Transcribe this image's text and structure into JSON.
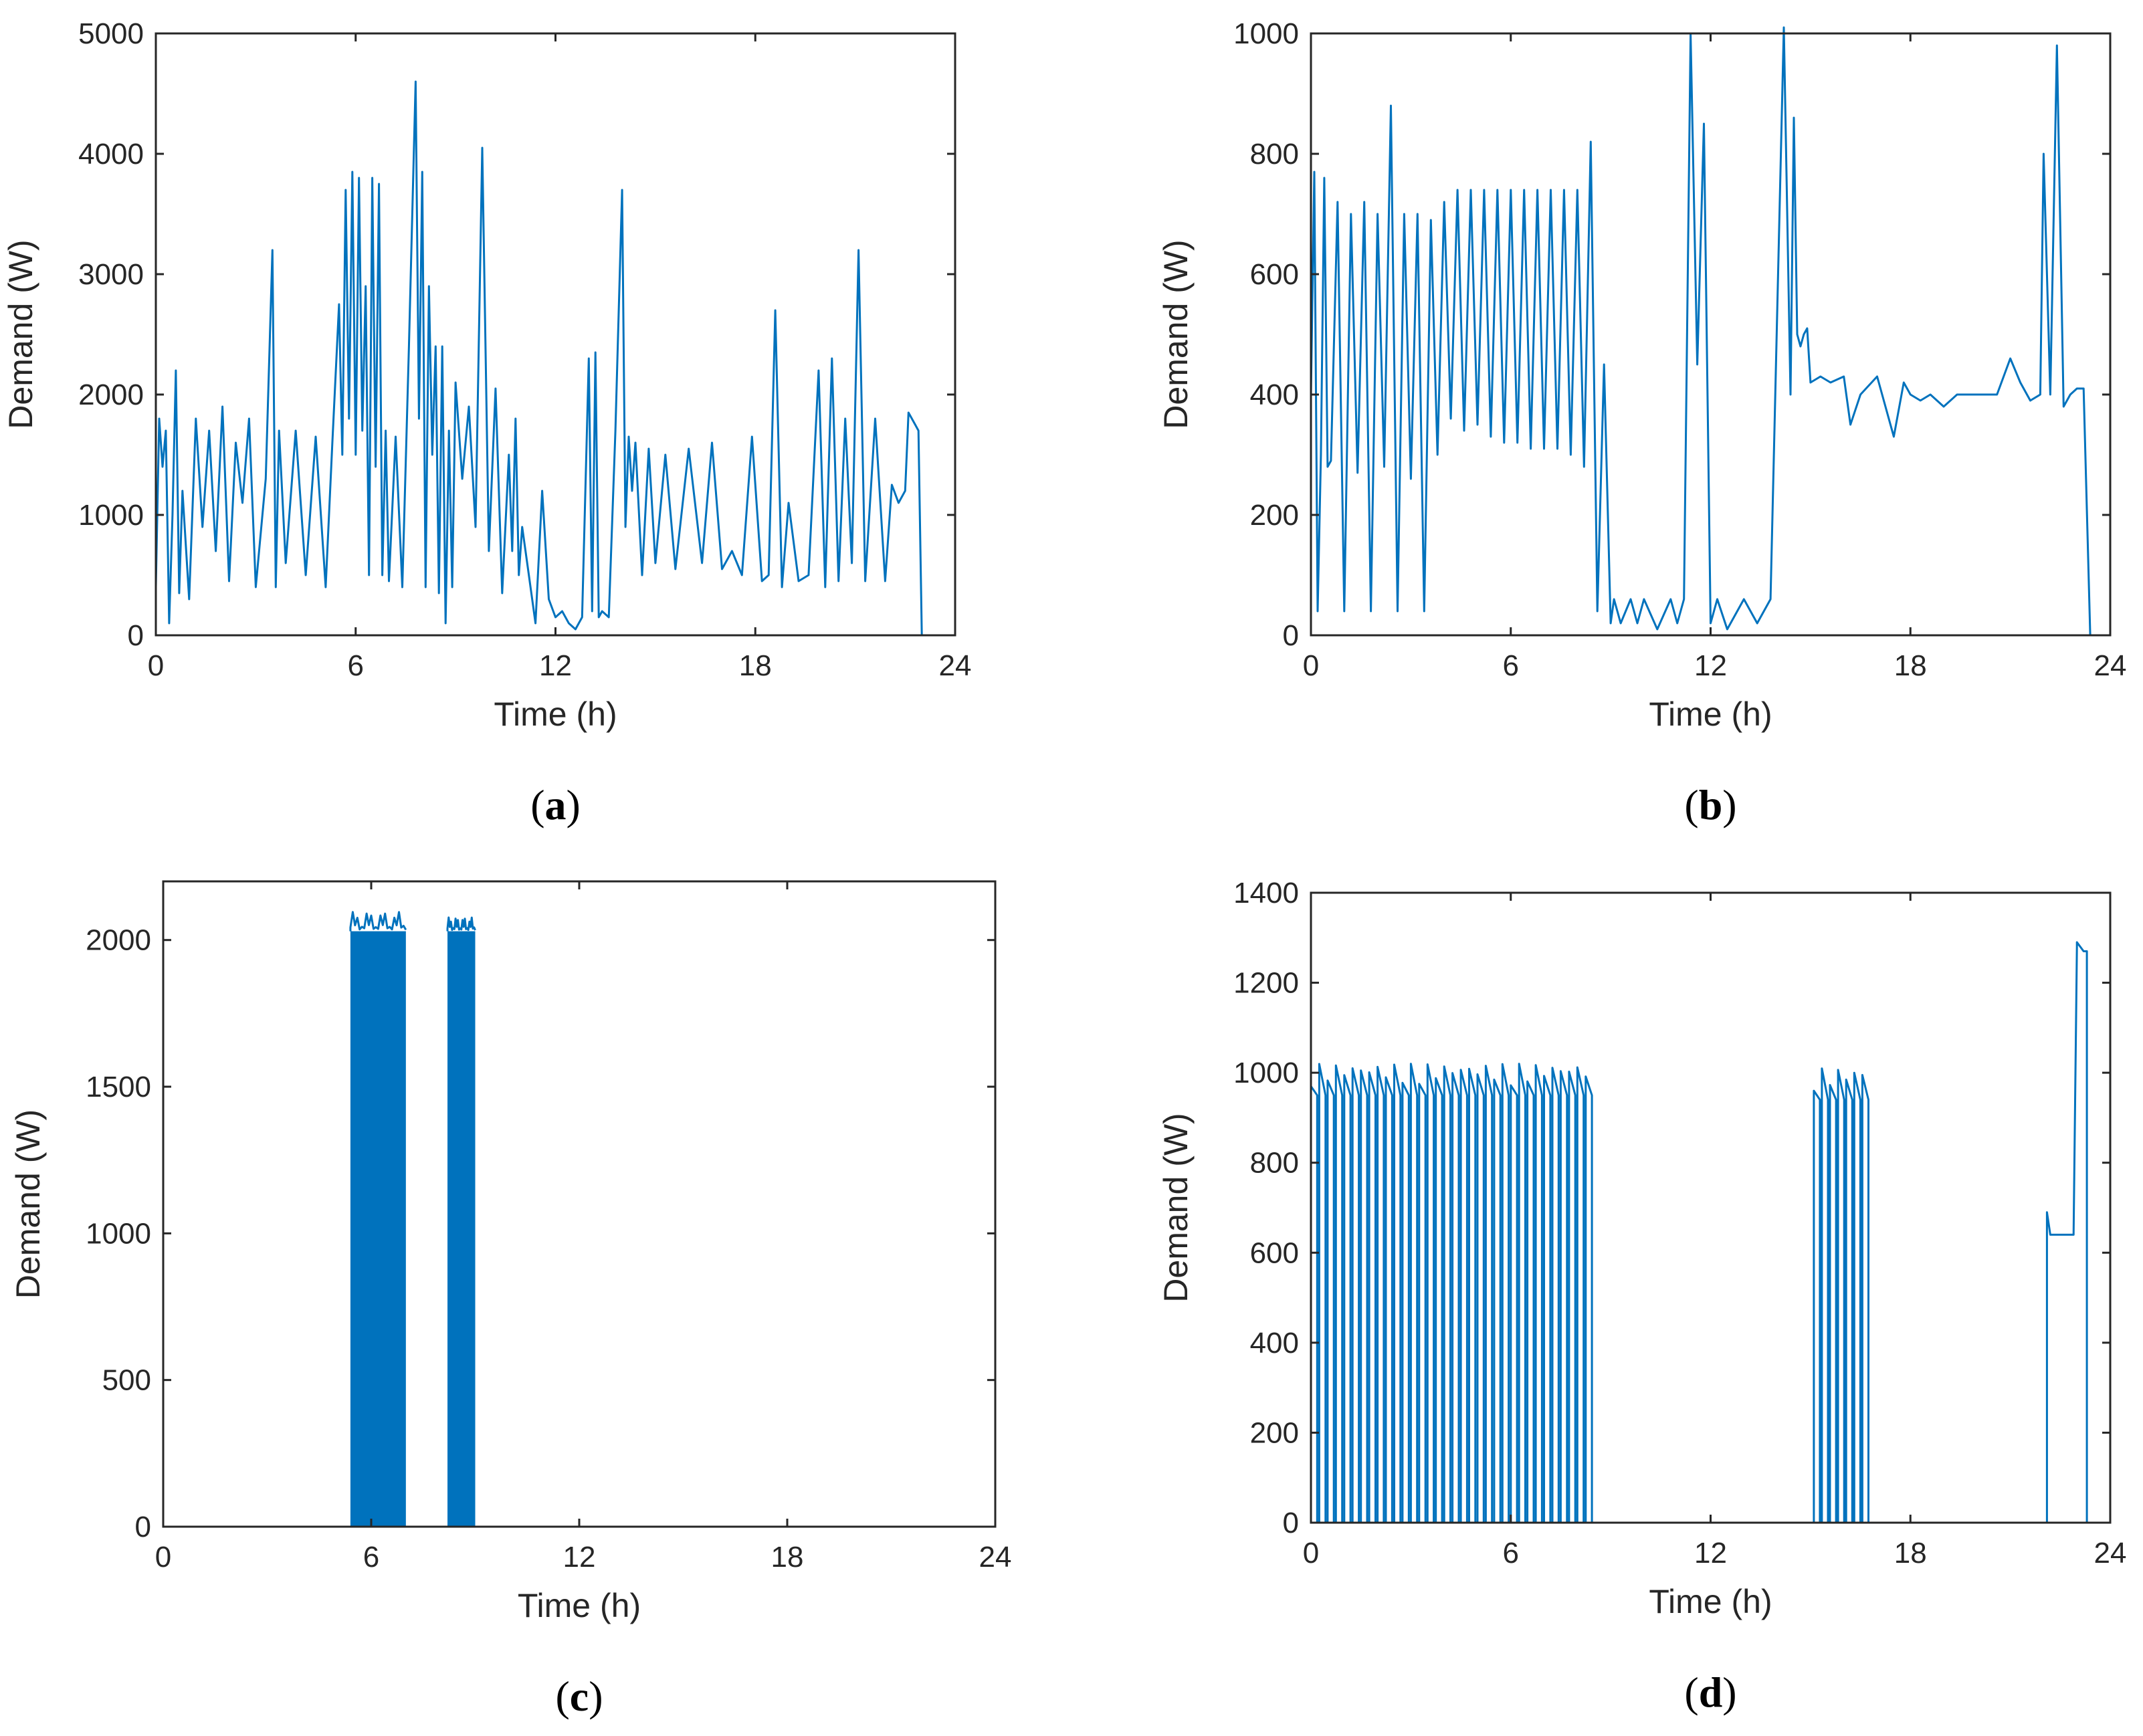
{
  "colors": {
    "series": "#0072bd",
    "axis": "#262626"
  },
  "chart_data": [
    {
      "id": "a",
      "type": "line",
      "panel_label": {
        "open": "(",
        "letter": "a",
        "close": ")"
      },
      "xlabel": "Time (h)",
      "ylabel": "Demand (W)",
      "xlim": [
        0,
        24
      ],
      "ylim": [
        0,
        5000
      ],
      "xticks": [
        "0",
        "6",
        "12",
        "18",
        "24"
      ],
      "yticks": [
        "0",
        "1000",
        "2000",
        "3000",
        "4000",
        "5000"
      ],
      "series": [
        {
          "name": "Demand",
          "x": [
            0,
            0.1,
            0.2,
            0.3,
            0.4,
            0.5,
            0.6,
            0.7,
            0.8,
            1.0,
            1.2,
            1.4,
            1.6,
            1.8,
            2.0,
            2.2,
            2.4,
            2.6,
            2.8,
            3.0,
            3.3,
            3.5,
            3.6,
            3.7,
            3.9,
            4.2,
            4.5,
            4.8,
            5.1,
            5.3,
            5.5,
            5.6,
            5.7,
            5.8,
            5.9,
            6.0,
            6.1,
            6.2,
            6.3,
            6.4,
            6.5,
            6.6,
            6.7,
            6.8,
            6.9,
            7.0,
            7.2,
            7.4,
            7.6,
            7.8,
            7.9,
            8.0,
            8.1,
            8.2,
            8.3,
            8.4,
            8.5,
            8.6,
            8.7,
            8.8,
            8.9,
            9.0,
            9.2,
            9.4,
            9.6,
            9.8,
            10.0,
            10.2,
            10.4,
            10.6,
            10.7,
            10.8,
            10.9,
            11.0,
            11.2,
            11.4,
            11.6,
            11.8,
            12.0,
            12.2,
            12.4,
            12.6,
            12.8,
            13.0,
            13.1,
            13.2,
            13.3,
            13.4,
            13.6,
            13.8,
            14.0,
            14.1,
            14.2,
            14.3,
            14.4,
            14.6,
            14.8,
            15.0,
            15.3,
            15.6,
            16.0,
            16.4,
            16.7,
            17.0,
            17.3,
            17.6,
            17.9,
            18.2,
            18.4,
            18.6,
            18.8,
            19.0,
            19.3,
            19.6,
            19.9,
            20.1,
            20.3,
            20.5,
            20.7,
            20.9,
            21.1,
            21.3,
            21.6,
            21.9,
            22.1,
            22.3,
            22.5,
            22.6,
            22.8,
            22.9,
            23.0,
            23.5,
            24.0
          ],
          "values": [
            400,
            1800,
            1400,
            1700,
            100,
            1000,
            2200,
            350,
            1200,
            300,
            1800,
            900,
            1700,
            700,
            1900,
            450,
            1600,
            1100,
            1800,
            400,
            1300,
            3200,
            400,
            1700,
            600,
            1700,
            500,
            1650,
            400,
            1600,
            2750,
            1500,
            3700,
            1800,
            3850,
            1500,
            3800,
            1700,
            2900,
            500,
            3800,
            1400,
            3750,
            500,
            1700,
            450,
            1650,
            400,
            2400,
            4600,
            1800,
            3850,
            400,
            2900,
            1500,
            2400,
            350,
            2400,
            100,
            1700,
            400,
            2100,
            1300,
            1900,
            900,
            4050,
            700,
            2050,
            350,
            1500,
            700,
            1800,
            500,
            900,
            500,
            100,
            1200,
            300,
            150,
            200,
            100,
            50,
            150,
            2300,
            200,
            2350,
            150,
            200,
            150,
            1700,
            3700,
            900,
            1650,
            1200,
            1600,
            500,
            1550,
            600,
            1500,
            550,
            1550,
            600,
            1600,
            550,
            700,
            500,
            1650,
            450,
            500,
            2700,
            400,
            1100,
            450,
            500,
            2200,
            400,
            2300,
            450,
            1800,
            600,
            3200,
            450,
            1800,
            450,
            1250,
            1100,
            1200,
            1850,
            1750,
            1700,
            0,
            0,
            0
          ]
        }
      ]
    },
    {
      "id": "b",
      "type": "line",
      "panel_label": {
        "open": "(",
        "letter": "b",
        "close": ")"
      },
      "xlabel": "Time (h)",
      "ylabel": "Demand (W)",
      "xlim": [
        0,
        24
      ],
      "ylim": [
        0,
        1000
      ],
      "xticks": [
        "0",
        "6",
        "12",
        "18",
        "24"
      ],
      "yticks": [
        "0",
        "200",
        "400",
        "600",
        "800",
        "1000"
      ],
      "series": [
        {
          "name": "Demand",
          "x": [
            0,
            0.1,
            0.2,
            0.3,
            0.4,
            0.5,
            0.6,
            0.8,
            1.0,
            1.2,
            1.4,
            1.6,
            1.8,
            2.0,
            2.2,
            2.4,
            2.6,
            2.8,
            3.0,
            3.2,
            3.4,
            3.6,
            3.8,
            4.0,
            4.2,
            4.4,
            4.6,
            4.8,
            5.0,
            5.2,
            5.4,
            5.6,
            5.8,
            6.0,
            6.2,
            6.4,
            6.6,
            6.8,
            7.0,
            7.2,
            7.4,
            7.6,
            7.8,
            8.0,
            8.2,
            8.4,
            8.6,
            8.8,
            9.0,
            9.1,
            9.3,
            9.6,
            9.8,
            10.0,
            10.4,
            10.8,
            11.0,
            11.2,
            11.4,
            11.6,
            11.8,
            12.0,
            12.2,
            12.5,
            13.0,
            13.4,
            13.8,
            14.2,
            14.4,
            14.5,
            14.6,
            14.7,
            14.8,
            14.9,
            15.0,
            15.3,
            15.6,
            16.0,
            16.2,
            16.5,
            17.0,
            17.5,
            17.8,
            18.0,
            18.3,
            18.6,
            19.0,
            19.4,
            19.8,
            20.2,
            20.6,
            21.0,
            21.3,
            21.6,
            21.9,
            22.0,
            22.2,
            22.4,
            22.6,
            22.8,
            23.0,
            23.2,
            23.4,
            24.0
          ],
          "values": [
            400,
            770,
            40,
            300,
            760,
            280,
            290,
            720,
            40,
            700,
            270,
            720,
            40,
            700,
            280,
            880,
            40,
            700,
            260,
            700,
            40,
            690,
            300,
            720,
            360,
            740,
            340,
            740,
            350,
            740,
            330,
            740,
            320,
            740,
            320,
            740,
            310,
            740,
            310,
            740,
            310,
            740,
            300,
            740,
            280,
            820,
            40,
            450,
            20,
            60,
            20,
            60,
            20,
            60,
            10,
            60,
            20,
            60,
            1000,
            450,
            850,
            20,
            60,
            10,
            60,
            20,
            60,
            1010,
            400,
            860,
            500,
            480,
            500,
            510,
            420,
            430,
            420,
            430,
            350,
            400,
            430,
            330,
            420,
            400,
            390,
            400,
            380,
            400,
            400,
            400,
            400,
            460,
            420,
            390,
            400,
            800,
            400,
            980,
            380,
            400,
            410,
            410,
            0,
            0
          ]
        }
      ]
    },
    {
      "id": "c",
      "type": "line",
      "panel_label": {
        "open": "(",
        "letter": "c",
        "close": ")"
      },
      "xlabel": "Time (h)",
      "ylabel": "Demand (W)",
      "xlim": [
        0,
        24
      ],
      "ylim": [
        0,
        2200
      ],
      "xticks": [
        "0",
        "6",
        "12",
        "18",
        "24"
      ],
      "yticks": [
        "0",
        "500",
        "1000",
        "1500",
        "2000"
      ],
      "series": [
        {
          "name": "Demand",
          "bursts": [
            {
              "x_start": 5.4,
              "x_end": 7.0,
              "peak": 2100,
              "level": 2030
            },
            {
              "x_start": 8.2,
              "x_end": 9.0,
              "peak": 2080,
              "level": 2030
            }
          ],
          "baseline": 0
        }
      ]
    },
    {
      "id": "d",
      "type": "line",
      "panel_label": {
        "open": "(",
        "letter": "d",
        "close": ")"
      },
      "xlabel": "Time (h)",
      "ylabel": "Demand (W)",
      "xlim": [
        0,
        24
      ],
      "ylim": [
        0,
        1400
      ],
      "xticks": [
        "0",
        "6",
        "12",
        "18",
        "24"
      ],
      "yticks": [
        "0",
        "200",
        "400",
        "600",
        "800",
        "1000",
        "1200",
        "1400"
      ],
      "series": [
        {
          "name": "Demand",
          "pulse_groups": [
            {
              "x_start": 0.0,
              "x_end": 8.5,
              "count": 34,
              "level": 970
            },
            {
              "x_start": 15.1,
              "x_end": 16.8,
              "count": 7,
              "level": 960
            }
          ],
          "extra": {
            "x": [
              22.1,
              22.1,
              22.2,
              22.9,
              23.0,
              23.0,
              23.2,
              23.2,
              23.3,
              23.3,
              24.0
            ],
            "values": [
              0,
              690,
              640,
              640,
              1280,
              1290,
              1270,
              1270,
              1270,
              0,
              0
            ]
          }
        }
      ]
    }
  ]
}
